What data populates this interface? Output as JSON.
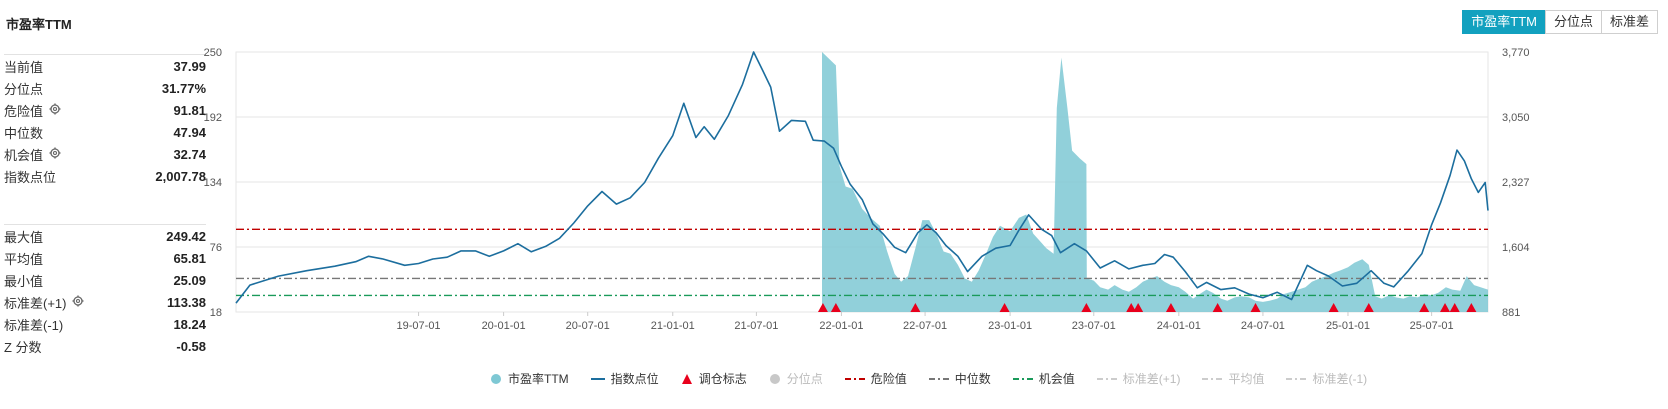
{
  "title": "市盈率TTM",
  "tabs": [
    {
      "label": "市盈率TTM",
      "active": true
    },
    {
      "label": "分位点",
      "active": false
    },
    {
      "label": "标准差",
      "active": false
    }
  ],
  "stats_top": [
    {
      "label": "当前值",
      "value": "37.99",
      "gear": false
    },
    {
      "label": "分位点",
      "value": "31.77%",
      "gear": false
    },
    {
      "label": "危险值",
      "value": "91.81",
      "gear": true
    },
    {
      "label": "中位数",
      "value": "47.94",
      "gear": false
    },
    {
      "label": "机会值",
      "value": "32.74",
      "gear": true
    },
    {
      "label": "指数点位",
      "value": "2,007.78",
      "gear": false
    }
  ],
  "stats_bottom": [
    {
      "label": "最大值",
      "value": "249.42",
      "gear": false
    },
    {
      "label": "平均值",
      "value": "65.81",
      "gear": false
    },
    {
      "label": "最小值",
      "value": "25.09",
      "gear": false
    },
    {
      "label": "标准差(+1)",
      "value": "113.38",
      "gear": true
    },
    {
      "label": "标准差(-1)",
      "value": "18.24",
      "gear": false
    },
    {
      "label": "Z 分数",
      "value": "-0.58",
      "gear": false
    }
  ],
  "legend": [
    {
      "label": "市盈率TTM",
      "kind": "dot",
      "color": "#7ec8d4",
      "off": false
    },
    {
      "label": "指数点位",
      "kind": "line",
      "color": "#1c6e9e",
      "off": false
    },
    {
      "label": "调仓标志",
      "kind": "triangle",
      "color": "#e8001c",
      "off": false
    },
    {
      "label": "分位点",
      "kind": "dot",
      "color": "#c8c8c8",
      "off": true
    },
    {
      "label": "危险值",
      "kind": "dashdot",
      "color": "#c00000",
      "off": false
    },
    {
      "label": "中位数",
      "kind": "dashdot",
      "color": "#777777",
      "off": false
    },
    {
      "label": "机会值",
      "kind": "dashdot",
      "color": "#1a9a5a",
      "off": false
    },
    {
      "label": "标准差(+1)",
      "kind": "dashdot",
      "color": "#cccccc",
      "off": true
    },
    {
      "label": "平均值",
      "kind": "dashdot",
      "color": "#cccccc",
      "off": true
    },
    {
      "label": "标准差(-1)",
      "kind": "dashdot",
      "color": "#cccccc",
      "off": true
    }
  ],
  "chart_data": {
    "type": "area",
    "x_start": "2018-06-01",
    "x_end": "2025-10-31",
    "x_ticks": [
      "19-07-01",
      "20-01-01",
      "20-07-01",
      "21-01-01",
      "21-07-01",
      "22-01-01",
      "22-07-01",
      "23-01-01",
      "23-07-01",
      "24-01-01",
      "24-07-01",
      "25-01-01",
      "25-07-01"
    ],
    "left_axis": {
      "ticks": [
        18,
        76,
        134,
        192,
        250
      ],
      "min": 18,
      "max": 250
    },
    "right_axis": {
      "ticks": [
        "881",
        "1,604",
        "2,327",
        "3,050",
        "3,770"
      ],
      "min": 881,
      "max": 3770
    },
    "ref_lines": [
      {
        "name": "危险值",
        "value": 91.81,
        "color": "#c00000"
      },
      {
        "name": "中位数",
        "value": 47.94,
        "color": "#777777"
      },
      {
        "name": "机会值",
        "value": 32.74,
        "color": "#1a9a5a"
      }
    ],
    "pe_series": {
      "name": "市盈率TTM",
      "color": "#7ec8d4",
      "points": [
        [
          "2021-11-20",
          250
        ],
        [
          "2021-12-20",
          238
        ],
        [
          "2021-12-28",
          148
        ],
        [
          "2022-01-10",
          130
        ],
        [
          "2022-01-25",
          128
        ],
        [
          "2022-02-15",
          110
        ],
        [
          "2022-03-05",
          102
        ],
        [
          "2022-03-25",
          95
        ],
        [
          "2022-04-10",
          72
        ],
        [
          "2022-04-26",
          52
        ],
        [
          "2022-05-10",
          45
        ],
        [
          "2022-05-25",
          50
        ],
        [
          "2022-06-10",
          75
        ],
        [
          "2022-06-25",
          100
        ],
        [
          "2022-07-10",
          100
        ],
        [
          "2022-07-25",
          88
        ],
        [
          "2022-08-10",
          72
        ],
        [
          "2022-08-25",
          70
        ],
        [
          "2022-09-10",
          60
        ],
        [
          "2022-09-25",
          48
        ],
        [
          "2022-10-10",
          45
        ],
        [
          "2022-10-25",
          55
        ],
        [
          "2022-11-10",
          70
        ],
        [
          "2022-11-25",
          85
        ],
        [
          "2022-12-10",
          95
        ],
        [
          "2023-01-01",
          90
        ],
        [
          "2023-01-20",
          102
        ],
        [
          "2023-02-05",
          105
        ],
        [
          "2023-02-20",
          88
        ],
        [
          "2023-03-05",
          82
        ],
        [
          "2023-03-20",
          75
        ],
        [
          "2023-04-05",
          70
        ],
        [
          "2023-04-12",
          200
        ],
        [
          "2023-04-22",
          245
        ],
        [
          "2023-05-05",
          200
        ],
        [
          "2023-05-15",
          162
        ],
        [
          "2023-06-01",
          155
        ],
        [
          "2023-06-15",
          150
        ],
        [
          "2023-06-16",
          48
        ],
        [
          "2023-07-01",
          46
        ],
        [
          "2023-07-15",
          40
        ],
        [
          "2023-08-01",
          38
        ],
        [
          "2023-08-15",
          42
        ],
        [
          "2023-09-01",
          38
        ],
        [
          "2023-09-15",
          36
        ],
        [
          "2023-10-01",
          40
        ],
        [
          "2023-10-15",
          45
        ],
        [
          "2023-11-01",
          48
        ],
        [
          "2023-11-15",
          50
        ],
        [
          "2023-12-01",
          45
        ],
        [
          "2023-12-15",
          42
        ],
        [
          "2024-01-01",
          40
        ],
        [
          "2024-01-15",
          36
        ],
        [
          "2024-02-01",
          30
        ],
        [
          "2024-02-15",
          34
        ],
        [
          "2024-03-01",
          38
        ],
        [
          "2024-03-15",
          35
        ],
        [
          "2024-04-01",
          30
        ],
        [
          "2024-04-15",
          28
        ],
        [
          "2024-05-01",
          31
        ],
        [
          "2024-05-15",
          32
        ],
        [
          "2024-06-01",
          31
        ],
        [
          "2024-06-15",
          28
        ],
        [
          "2024-07-01",
          27
        ],
        [
          "2024-07-15",
          28
        ],
        [
          "2024-08-01",
          30
        ],
        [
          "2024-08-15",
          34
        ],
        [
          "2024-09-01",
          36
        ],
        [
          "2024-09-15",
          38
        ],
        [
          "2024-10-01",
          40
        ],
        [
          "2024-10-15",
          45
        ],
        [
          "2024-11-01",
          48
        ],
        [
          "2024-11-15",
          50
        ],
        [
          "2024-12-01",
          53
        ],
        [
          "2024-12-15",
          55
        ],
        [
          "2025-01-01",
          58
        ],
        [
          "2025-01-15",
          62
        ],
        [
          "2025-02-01",
          65
        ],
        [
          "2025-02-15",
          60
        ],
        [
          "2025-03-01",
          32
        ],
        [
          "2025-03-15",
          30
        ],
        [
          "2025-04-01",
          33
        ],
        [
          "2025-04-15",
          31
        ],
        [
          "2025-05-01",
          30
        ],
        [
          "2025-05-15",
          32
        ],
        [
          "2025-06-01",
          31
        ],
        [
          "2025-06-15",
          34
        ],
        [
          "2025-07-01",
          33
        ],
        [
          "2025-07-15",
          35
        ],
        [
          "2025-08-01",
          40
        ],
        [
          "2025-08-15",
          38
        ],
        [
          "2025-09-01",
          37
        ],
        [
          "2025-09-15",
          50
        ],
        [
          "2025-10-01",
          42
        ],
        [
          "2025-10-15",
          40
        ],
        [
          "2025-10-31",
          38
        ]
      ]
    },
    "index_series": {
      "name": "指数点位",
      "color": "#1c6e9e",
      "points": [
        [
          "2018-06-01",
          980
        ],
        [
          "2018-07-01",
          1180
        ],
        [
          "2018-09-01",
          1280
        ],
        [
          "2018-11-01",
          1340
        ],
        [
          "2019-01-01",
          1390
        ],
        [
          "2019-02-15",
          1440
        ],
        [
          "2019-03-15",
          1500
        ],
        [
          "2019-04-15",
          1470
        ],
        [
          "2019-06-01",
          1400
        ],
        [
          "2019-07-01",
          1420
        ],
        [
          "2019-08-01",
          1470
        ],
        [
          "2019-09-01",
          1490
        ],
        [
          "2019-10-01",
          1560
        ],
        [
          "2019-11-01",
          1560
        ],
        [
          "2019-12-01",
          1500
        ],
        [
          "2020-01-01",
          1560
        ],
        [
          "2020-02-01",
          1640
        ],
        [
          "2020-03-01",
          1550
        ],
        [
          "2020-04-01",
          1610
        ],
        [
          "2020-05-01",
          1700
        ],
        [
          "2020-06-01",
          1870
        ],
        [
          "2020-07-01",
          2060
        ],
        [
          "2020-08-01",
          2220
        ],
        [
          "2020-09-01",
          2080
        ],
        [
          "2020-10-01",
          2150
        ],
        [
          "2020-11-01",
          2320
        ],
        [
          "2020-12-01",
          2590
        ],
        [
          "2021-01-01",
          2840
        ],
        [
          "2021-01-25",
          3200
        ],
        [
          "2021-02-20",
          2820
        ],
        [
          "2021-03-10",
          2940
        ],
        [
          "2021-04-01",
          2800
        ],
        [
          "2021-05-01",
          3060
        ],
        [
          "2021-06-01",
          3410
        ],
        [
          "2021-06-25",
          3770
        ],
        [
          "2021-07-15",
          3560
        ],
        [
          "2021-08-01",
          3380
        ],
        [
          "2021-08-20",
          2890
        ],
        [
          "2021-09-15",
          3010
        ],
        [
          "2021-10-15",
          3000
        ],
        [
          "2021-11-01",
          2790
        ],
        [
          "2021-11-25",
          2780
        ],
        [
          "2021-12-15",
          2700
        ],
        [
          "2022-01-01",
          2500
        ],
        [
          "2022-01-20",
          2300
        ],
        [
          "2022-02-15",
          2130
        ],
        [
          "2022-03-10",
          1860
        ],
        [
          "2022-04-01",
          1750
        ],
        [
          "2022-04-26",
          1600
        ],
        [
          "2022-05-20",
          1540
        ],
        [
          "2022-06-15",
          1760
        ],
        [
          "2022-07-05",
          1850
        ],
        [
          "2022-07-25",
          1760
        ],
        [
          "2022-08-15",
          1620
        ],
        [
          "2022-09-10",
          1500
        ],
        [
          "2022-10-01",
          1330
        ],
        [
          "2022-11-01",
          1500
        ],
        [
          "2022-12-01",
          1590
        ],
        [
          "2023-01-01",
          1620
        ],
        [
          "2023-01-20",
          1790
        ],
        [
          "2023-02-10",
          1960
        ],
        [
          "2023-03-10",
          1800
        ],
        [
          "2023-04-01",
          1730
        ],
        [
          "2023-04-20",
          1540
        ],
        [
          "2023-05-20",
          1640
        ],
        [
          "2023-06-15",
          1560
        ],
        [
          "2023-07-15",
          1370
        ],
        [
          "2023-08-15",
          1450
        ],
        [
          "2023-09-15",
          1360
        ],
        [
          "2023-10-15",
          1400
        ],
        [
          "2023-11-10",
          1420
        ],
        [
          "2023-12-01",
          1520
        ],
        [
          "2023-12-20",
          1490
        ],
        [
          "2024-01-15",
          1330
        ],
        [
          "2024-02-10",
          1150
        ],
        [
          "2024-03-01",
          1210
        ],
        [
          "2024-04-01",
          1130
        ],
        [
          "2024-05-01",
          1150
        ],
        [
          "2024-06-01",
          1080
        ],
        [
          "2024-07-01",
          1040
        ],
        [
          "2024-08-01",
          1100
        ],
        [
          "2024-09-01",
          1020
        ],
        [
          "2024-10-05",
          1400
        ],
        [
          "2024-10-25",
          1340
        ],
        [
          "2024-11-20",
          1280
        ],
        [
          "2024-12-20",
          1170
        ],
        [
          "2025-01-20",
          1200
        ],
        [
          "2025-02-20",
          1340
        ],
        [
          "2025-03-20",
          1200
        ],
        [
          "2025-04-10",
          1160
        ],
        [
          "2025-05-10",
          1330
        ],
        [
          "2025-06-10",
          1530
        ],
        [
          "2025-07-01",
          1850
        ],
        [
          "2025-07-20",
          2090
        ],
        [
          "2025-08-10",
          2400
        ],
        [
          "2025-08-25",
          2680
        ],
        [
          "2025-09-10",
          2560
        ],
        [
          "2025-09-25",
          2360
        ],
        [
          "2025-10-10",
          2210
        ],
        [
          "2025-10-25",
          2320
        ],
        [
          "2025-10-31",
          2008
        ]
      ]
    },
    "markers": {
      "name": "调仓标志",
      "color": "#e8001c",
      "dates": [
        "2021-11-22",
        "2021-12-20",
        "2022-06-10",
        "2022-12-20",
        "2023-06-15",
        "2023-09-20",
        "2023-10-05",
        "2023-12-15",
        "2024-03-25",
        "2024-06-15",
        "2024-12-01",
        "2025-02-15",
        "2025-06-15",
        "2025-07-30",
        "2025-08-20",
        "2025-09-25"
      ]
    }
  }
}
